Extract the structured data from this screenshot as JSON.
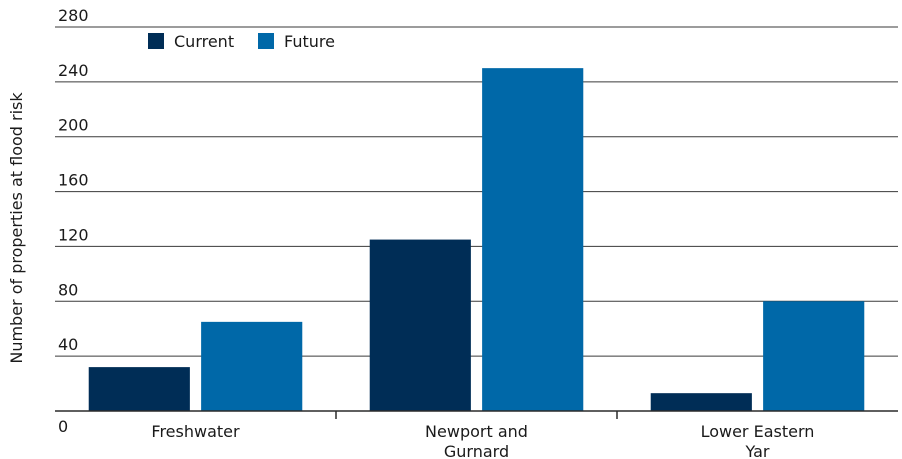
{
  "chart_data": {
    "type": "bar",
    "ylabel": "Number of properties at flood risk",
    "xlabel": "",
    "ylim": [
      0,
      280
    ],
    "yticks": [
      0,
      40,
      80,
      120,
      160,
      200,
      240,
      280
    ],
    "grid": true,
    "legend_position": "top-left",
    "categories": [
      [
        "Freshwater"
      ],
      [
        "Newport and",
        "Gurnard"
      ],
      [
        "Lower Eastern",
        "Yar"
      ]
    ],
    "series": [
      {
        "name": "Current",
        "color": "#002d56",
        "values": [
          32,
          125,
          13
        ]
      },
      {
        "name": "Future",
        "color": "#0068a8",
        "values": [
          65,
          250,
          80
        ]
      }
    ]
  }
}
